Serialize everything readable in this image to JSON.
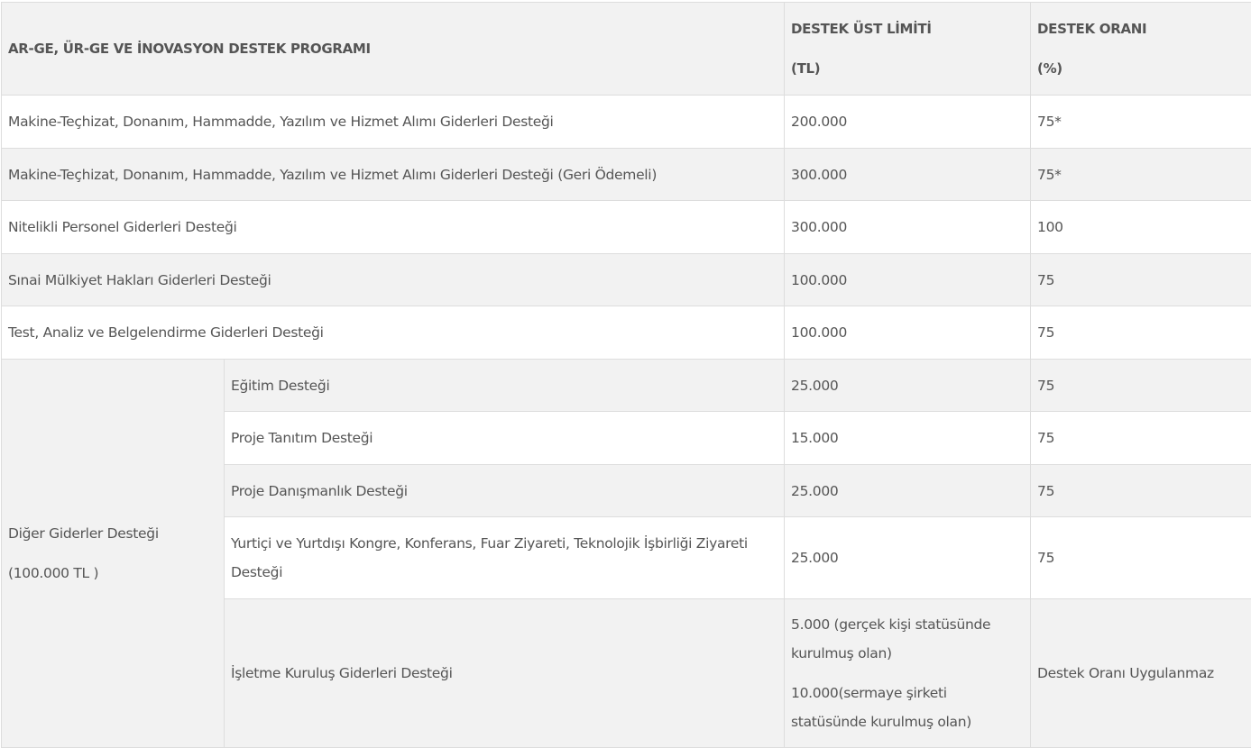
{
  "header": {
    "program": "AR-GE, ÜR-GE VE İNOVASYON DESTEK PROGRAMI",
    "limit_line1": "DESTEK ÜST LİMİTİ",
    "limit_line2": "(TL)",
    "rate_line1": "DESTEK ORANI",
    "rate_line2": "(%)"
  },
  "rows": [
    {
      "name": "Makine-Teçhizat, Donanım, Hammadde, Yazılım ve Hizmet Alımı Giderleri Desteği",
      "limit": "200.000",
      "rate": "75*"
    },
    {
      "name": "Makine-Teçhizat, Donanım, Hammadde, Yazılım ve Hizmet Alımı Giderleri Desteği (Geri Ödemeli)",
      "limit": "300.000",
      "rate": "75*"
    },
    {
      "name": "Nitelikli Personel Giderleri Desteği",
      "limit": "300.000",
      "rate": "100"
    },
    {
      "name": "Sınai Mülkiyet Hakları Giderleri Desteği",
      "limit": "100.000",
      "rate": "75"
    },
    {
      "name": "Test, Analiz ve Belgelendirme Giderleri Desteği",
      "limit": "100.000",
      "rate": "75"
    }
  ],
  "other": {
    "title": "Diğer Giderler Desteği",
    "subtitle": "(100.000 TL )",
    "items": [
      {
        "name": "Eğitim Desteği",
        "limit": "25.000",
        "rate": "75"
      },
      {
        "name": "Proje Tanıtım Desteği",
        "limit": "15.000",
        "rate": "75"
      },
      {
        "name": "Proje Danışmanlık Desteği",
        "limit": "25.000",
        "rate": "75"
      },
      {
        "name": "Yurtiçi ve Yurtdışı Kongre, Konferans, Fuar Ziyareti, Teknolojik İşbirliği Ziyareti Desteği",
        "limit": "25.000",
        "rate": "75"
      },
      {
        "name": "İşletme Kuruluş Giderleri Desteği",
        "limit1": "5.000 (gerçek kişi statüsünde kurulmuş olan)",
        "limit2": "10.000(sermaye şirketi statüsünde kurulmuş olan)",
        "rate": "Destek Oranı Uygulanmaz"
      }
    ]
  }
}
